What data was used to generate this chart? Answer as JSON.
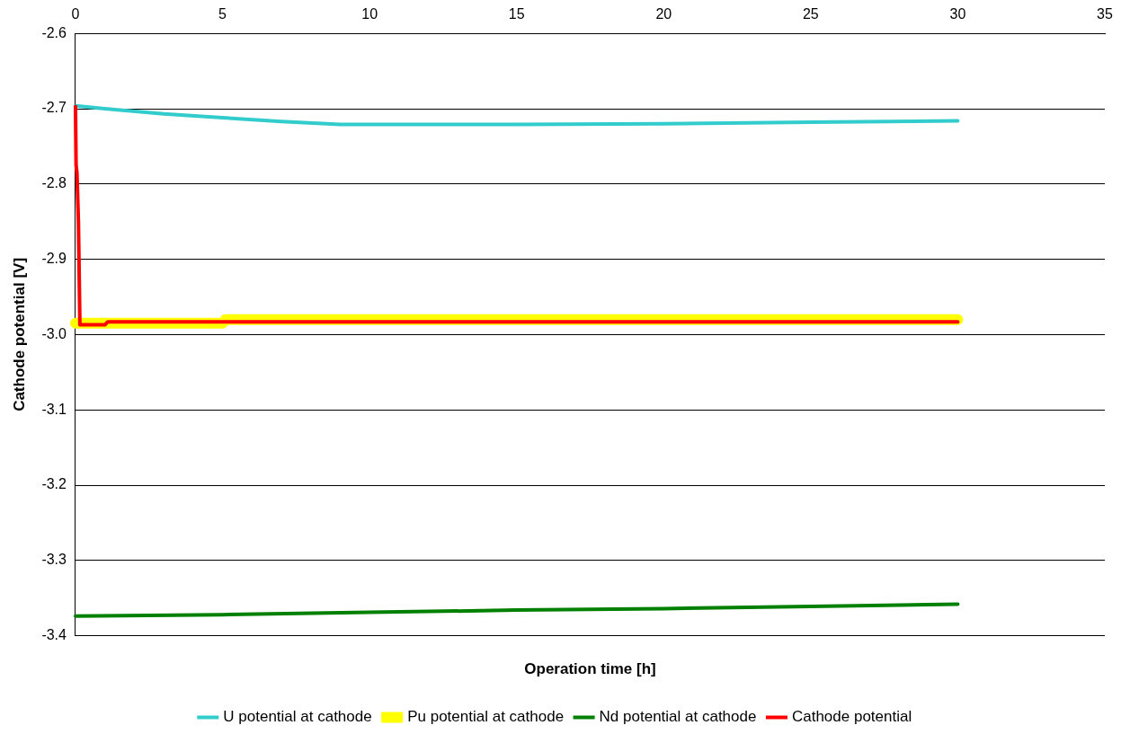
{
  "chart_data": {
    "type": "line",
    "xlabel": "Operation time [h]",
    "ylabel": "Cathode potential [V]",
    "xlim": [
      0,
      35
    ],
    "xticks": [
      0,
      5,
      10,
      15,
      20,
      25,
      30,
      35
    ],
    "ylim": [
      -3.4,
      -2.6
    ],
    "yticks": [
      {
        "value": -3.4,
        "label": "-3.4"
      },
      {
        "value": -3.3,
        "label": "-3.3"
      },
      {
        "value": -3.2,
        "label": "-3.2"
      },
      {
        "value": -3.1,
        "label": "-3.1"
      },
      {
        "value": -3.0,
        "label": "-3.0"
      },
      {
        "value": -2.9,
        "label": "-2.9"
      },
      {
        "value": -2.8,
        "label": "-2.8"
      },
      {
        "value": -2.7,
        "label": "-2.7"
      },
      {
        "value": -2.6,
        "label": "-2.6"
      }
    ],
    "grid": "y",
    "legend": "bottom",
    "marker": "none",
    "line_style": "solid",
    "series": [
      {
        "name": "U potential at cathode",
        "color": "#33cccc",
        "x": [
          0,
          1,
          3,
          5,
          7,
          9,
          15,
          20,
          25,
          30
        ],
        "values": [
          -2.696,
          -2.7,
          -2.707,
          -2.712,
          -2.717,
          -2.721,
          -2.721,
          -2.72,
          -2.718,
          -2.716
        ]
      },
      {
        "name": "Pu potential at cathode",
        "color": "#ffff00",
        "x": [
          0,
          5,
          5.1,
          30
        ],
        "values": [
          -2.985,
          -2.985,
          -2.98,
          -2.98
        ]
      },
      {
        "name": "Nd potential at cathode",
        "color": "#008000",
        "x": [
          0,
          2.5,
          5,
          10,
          15,
          20,
          25,
          30
        ],
        "values": [
          -3.374,
          -3.373,
          -3.372,
          -3.369,
          -3.366,
          -3.364,
          -3.361,
          -3.358
        ]
      },
      {
        "name": "Cathode potential",
        "color": "#ff0000",
        "x": [
          0,
          0.02,
          0.05,
          0.1,
          0.15,
          1,
          1.1,
          30
        ],
        "values": [
          -2.697,
          -2.775,
          -2.785,
          -2.85,
          -2.987,
          -2.987,
          -2.983,
          -2.983
        ]
      }
    ]
  }
}
